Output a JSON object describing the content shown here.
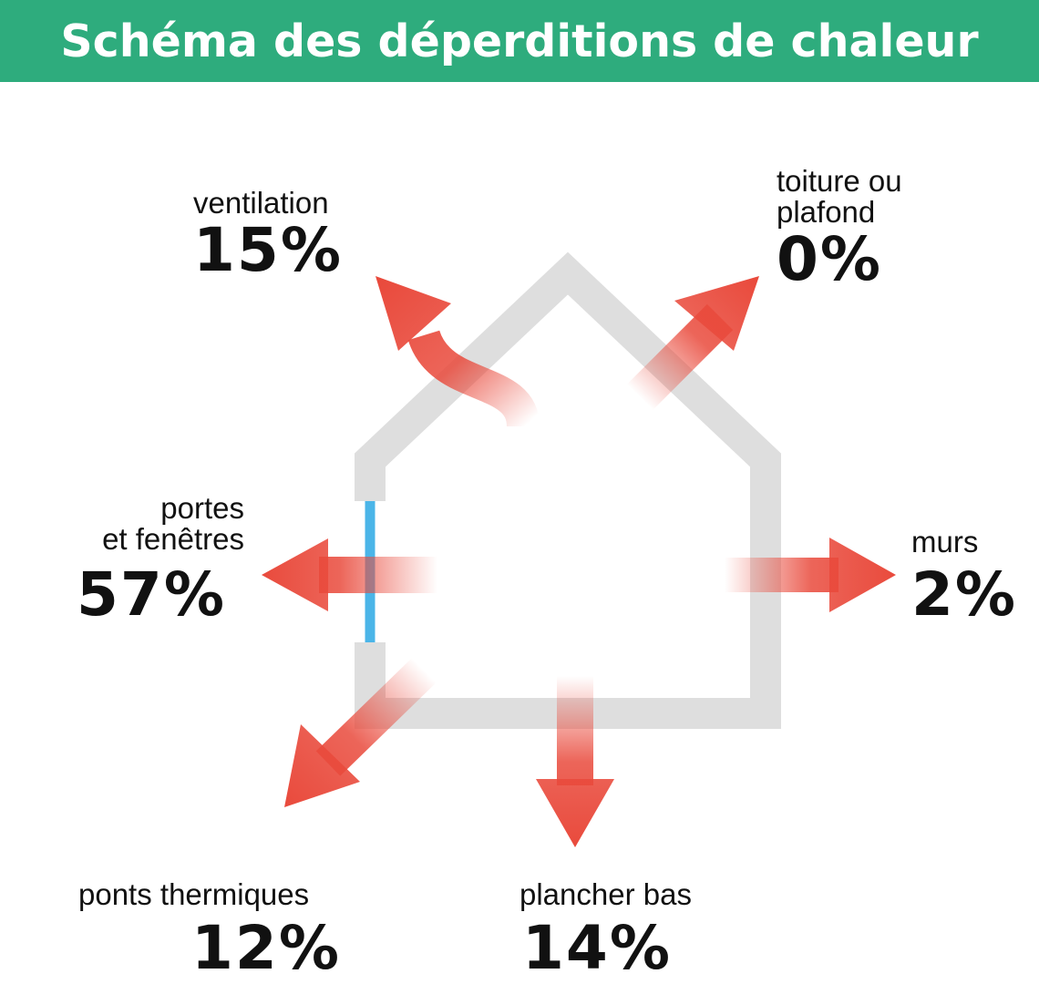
{
  "title": "Schéma des déperditions de chaleur",
  "colors": {
    "banner": "#2eac7d",
    "arrow": "#e94a3c",
    "house": "#dedede",
    "window": "#4bb5e8",
    "text": "#111111"
  },
  "losses": {
    "ventilation": {
      "label": "ventilation",
      "percent": "15%"
    },
    "toiture": {
      "label_line1": "toiture ou",
      "label_line2": "plafond",
      "percent": "0%"
    },
    "portes": {
      "label_line1": "portes",
      "label_line2": "et fenêtres",
      "percent": "57%"
    },
    "murs": {
      "label": "murs",
      "percent": "2%"
    },
    "ponts": {
      "label": "ponts thermiques",
      "percent": "12%"
    },
    "plancher": {
      "label": "plancher bas",
      "percent": "14%"
    }
  }
}
